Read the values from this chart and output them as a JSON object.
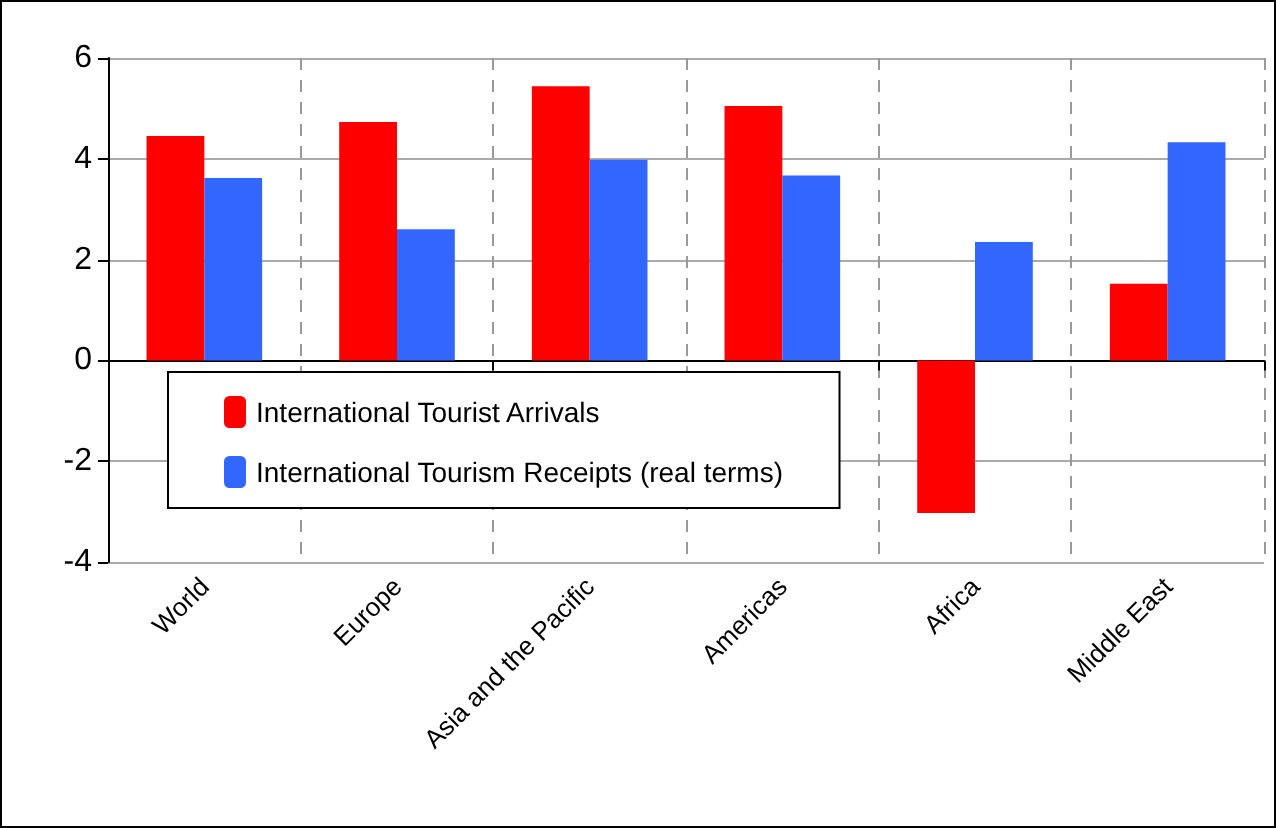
{
  "chart_data": {
    "type": "bar",
    "categories": [
      "World",
      "Europe",
      "Asia and the Pacific",
      "Americas",
      "Africa",
      "Middle East"
    ],
    "series": [
      {
        "name": "International Tourist Arrivals",
        "color": "#ff0000",
        "values": [
          4.45,
          4.73,
          5.44,
          5.05,
          -3.03,
          1.52
        ]
      },
      {
        "name": "International Tourism Receipts (real terms)",
        "color": "#3366ff",
        "values": [
          3.62,
          2.6,
          3.98,
          3.67,
          2.35,
          4.33
        ]
      }
    ],
    "ylim": [
      -4,
      6
    ],
    "yticks": [
      -4,
      -2,
      0,
      2,
      4,
      6
    ],
    "grid": true,
    "legend": "bottom left"
  }
}
